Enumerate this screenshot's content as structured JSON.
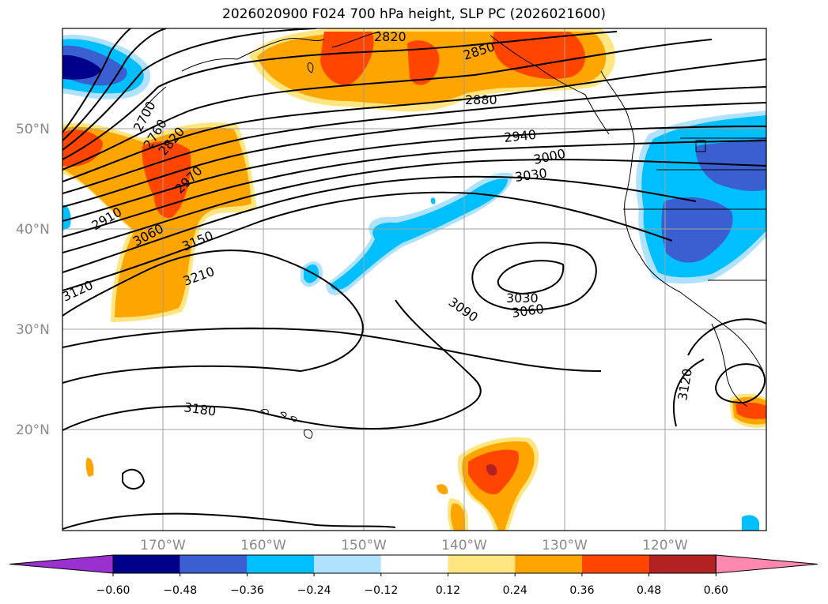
{
  "title": "2026020900 F024 700 hPa height, SLP PC (2026021600)",
  "latitude_labels": [
    "50°N",
    "40°N",
    "30°N",
    "20°N"
  ],
  "longitude_labels": [
    "170°W",
    "160°W",
    "150°W",
    "140°W",
    "130°W",
    "120°W"
  ],
  "contour_labels": [
    "2820",
    "2850",
    "2880",
    "2940",
    "3000",
    "3030",
    "2700",
    "2760",
    "2820",
    "2970",
    "2910",
    "3060",
    "3150",
    "3120",
    "3210",
    "3030",
    "3060",
    "3090",
    "3120",
    "3180"
  ],
  "colorbar": {
    "ticks": [
      "−0.60",
      "−0.48",
      "−0.36",
      "−0.24",
      "−0.12",
      "0.12",
      "0.24",
      "0.36",
      "0.48",
      "0.60"
    ],
    "colors": [
      "#9b30d0",
      "#00008b",
      "#3a5fd0",
      "#00bfff",
      "#b0e2ff",
      "#ffffff",
      "#ffe680",
      "#ffa500",
      "#ff4500",
      "#b22222",
      "#ff88b0"
    ]
  }
}
